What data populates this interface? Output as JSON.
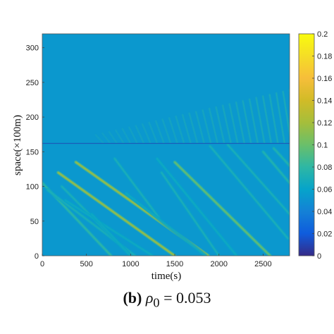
{
  "chart_data": {
    "type": "heatmap",
    "xlabel": "time(s)",
    "ylabel": "space(×100m)",
    "xlim": [
      0,
      2800
    ],
    "ylim": [
      0,
      320
    ],
    "x_ticks": [
      "0",
      "500",
      "1000",
      "1500",
      "2000",
      "2500"
    ],
    "y_ticks": [
      "0",
      "50",
      "100",
      "150",
      "200",
      "250",
      "300"
    ],
    "colorbar": {
      "range": [
        0,
        0.2
      ],
      "ticks": [
        "0",
        "0.02",
        "0.04",
        "0.06",
        "0.08",
        "0.1",
        "0.12",
        "0.14",
        "0.16",
        "0.18",
        "0.2"
      ],
      "colormap": "parula"
    },
    "background_value": 0.053,
    "horizontal_line_at": 162,
    "bands": [
      {
        "x0": 0,
        "y0": 105,
        "x1": 780,
        "y1": 0,
        "value": 0.08
      },
      {
        "x0": 60,
        "y0": 95,
        "x1": 1050,
        "y1": 0,
        "value": 0.07
      },
      {
        "x0": 180,
        "y0": 120,
        "x1": 1500,
        "y1": 0,
        "value": 0.12
      },
      {
        "x0": 220,
        "y0": 100,
        "x1": 1000,
        "y1": 0,
        "value": 0.07
      },
      {
        "x0": 260,
        "y0": 80,
        "x1": 1250,
        "y1": 0,
        "value": 0.065
      },
      {
        "x0": 380,
        "y0": 135,
        "x1": 1880,
        "y1": 0,
        "value": 0.12
      },
      {
        "x0": 560,
        "y0": 60,
        "x1": 1000,
        "y1": 0,
        "value": 0.065
      },
      {
        "x0": 820,
        "y0": 140,
        "x1": 1320,
        "y1": 55,
        "value": 0.07
      },
      {
        "x0": 950,
        "y0": 90,
        "x1": 1850,
        "y1": 0,
        "value": 0.065
      },
      {
        "x0": 1350,
        "y0": 120,
        "x1": 2000,
        "y1": 0,
        "value": 0.07
      },
      {
        "x0": 1300,
        "y0": 140,
        "x1": 2200,
        "y1": 0,
        "value": 0.065
      },
      {
        "x0": 1500,
        "y0": 135,
        "x1": 2580,
        "y1": 0,
        "value": 0.1
      },
      {
        "x0": 2100,
        "y0": 160,
        "x1": 2800,
        "y1": 60,
        "value": 0.07
      },
      {
        "x0": 1900,
        "y0": 158,
        "x1": 2780,
        "y1": 25,
        "value": 0.07
      },
      {
        "x0": 2500,
        "y0": 150,
        "x1": 2800,
        "y1": 105,
        "value": 0.075
      },
      {
        "x0": 2620,
        "y0": 155,
        "x1": 2800,
        "y1": 130,
        "value": 0.075
      }
    ],
    "stripes": {
      "x_start": 600,
      "x_end": 2800,
      "count": 30,
      "y_low": 162,
      "y_high_start": 175,
      "y_high_end": 240,
      "value": 0.075
    }
  },
  "caption": {
    "panel": "(b)",
    "symbol": "ρ",
    "subscript": "0",
    "equals": " = 0.053"
  }
}
